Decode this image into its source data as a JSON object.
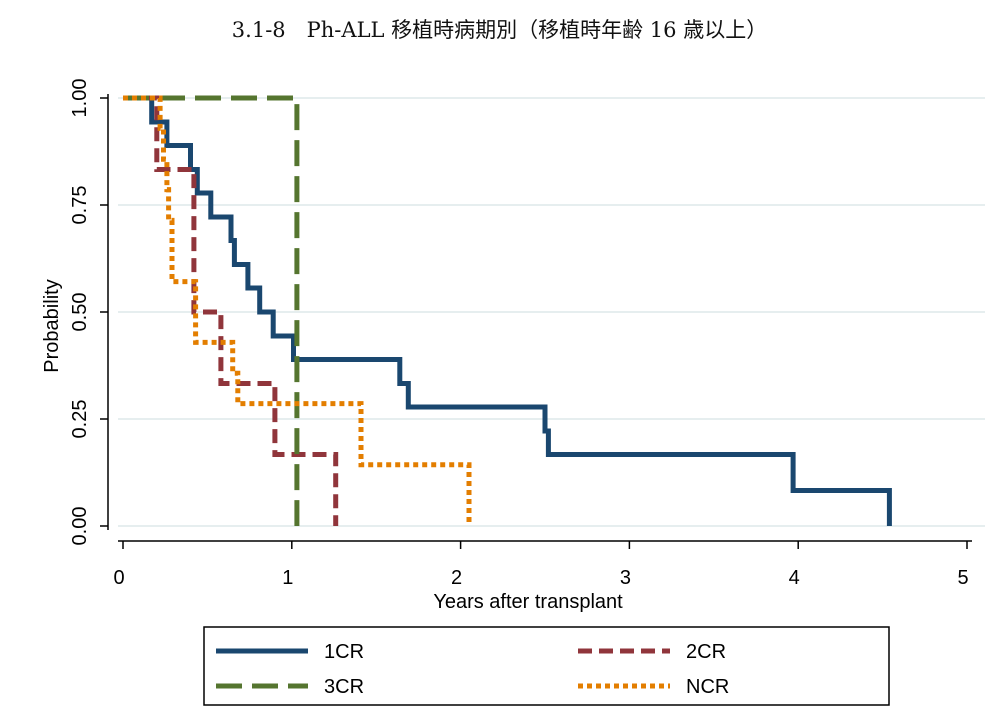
{
  "title": "3.1-8　Ph-ALL 移植時病期別（移植時年齢 16 歳以上）",
  "chart_data": {
    "type": "line",
    "title": "3.1-8　Ph-ALL 移植時病期別（移植時年齢 16 歳以上）",
    "xlabel": "Years after transplant",
    "ylabel": "Probability",
    "xlim": [
      0,
      5
    ],
    "ylim": [
      0,
      1
    ],
    "xticks": [
      "0",
      "1",
      "2",
      "3",
      "4",
      "5"
    ],
    "yticks": [
      "0.00",
      "0.25",
      "0.50",
      "0.75",
      "1.00"
    ],
    "grid": "horizontal",
    "legend_position": "bottom",
    "series": [
      {
        "name": "1CR",
        "color": "#1a476f",
        "dash": "solid",
        "points": [
          [
            0,
            1.0
          ],
          [
            0.17,
            1.0
          ],
          [
            0.17,
            0.944
          ],
          [
            0.26,
            0.944
          ],
          [
            0.26,
            0.889
          ],
          [
            0.4,
            0.889
          ],
          [
            0.4,
            0.833
          ],
          [
            0.44,
            0.833
          ],
          [
            0.44,
            0.778
          ],
          [
            0.52,
            0.778
          ],
          [
            0.52,
            0.722
          ],
          [
            0.64,
            0.722
          ],
          [
            0.64,
            0.667
          ],
          [
            0.66,
            0.667
          ],
          [
            0.66,
            0.611
          ],
          [
            0.74,
            0.611
          ],
          [
            0.74,
            0.556
          ],
          [
            0.81,
            0.556
          ],
          [
            0.81,
            0.5
          ],
          [
            0.89,
            0.5
          ],
          [
            0.89,
            0.444
          ],
          [
            1.01,
            0.444
          ],
          [
            1.01,
            0.389
          ],
          [
            1.64,
            0.389
          ],
          [
            1.64,
            0.333
          ],
          [
            1.69,
            0.333
          ],
          [
            1.69,
            0.278
          ],
          [
            2.5,
            0.278
          ],
          [
            2.5,
            0.222
          ],
          [
            2.52,
            0.222
          ],
          [
            2.52,
            0.167
          ],
          [
            3.97,
            0.167
          ],
          [
            3.97,
            0.083
          ],
          [
            4.54,
            0.083
          ],
          [
            4.54,
            0.0
          ]
        ]
      },
      {
        "name": "2CR",
        "color": "#90353b",
        "dash": "dash",
        "points": [
          [
            0,
            1.0
          ],
          [
            0.2,
            1.0
          ],
          [
            0.2,
            0.833
          ],
          [
            0.42,
            0.833
          ],
          [
            0.42,
            0.5
          ],
          [
            0.58,
            0.5
          ],
          [
            0.58,
            0.333
          ],
          [
            0.9,
            0.333
          ],
          [
            0.9,
            0.167
          ],
          [
            1.26,
            0.167
          ],
          [
            1.26,
            0.0
          ]
        ]
      },
      {
        "name": "3CR",
        "color": "#55752f",
        "dash": "longdash",
        "points": [
          [
            0,
            1.0
          ],
          [
            1.03,
            1.0
          ],
          [
            1.03,
            0.0
          ]
        ]
      },
      {
        "name": "NCR",
        "color": "#e37e00",
        "dash": "dot",
        "points": [
          [
            0,
            1.0
          ],
          [
            0.22,
            1.0
          ],
          [
            0.22,
            0.929
          ],
          [
            0.24,
            0.929
          ],
          [
            0.24,
            0.857
          ],
          [
            0.26,
            0.857
          ],
          [
            0.26,
            0.786
          ],
          [
            0.27,
            0.786
          ],
          [
            0.27,
            0.714
          ],
          [
            0.29,
            0.714
          ],
          [
            0.29,
            0.571
          ],
          [
            0.43,
            0.571
          ],
          [
            0.43,
            0.429
          ],
          [
            0.65,
            0.429
          ],
          [
            0.65,
            0.357
          ],
          [
            0.68,
            0.357
          ],
          [
            0.68,
            0.286
          ],
          [
            1.41,
            0.286
          ],
          [
            1.41,
            0.143
          ],
          [
            2.05,
            0.143
          ],
          [
            2.05,
            0.0
          ]
        ]
      }
    ]
  }
}
